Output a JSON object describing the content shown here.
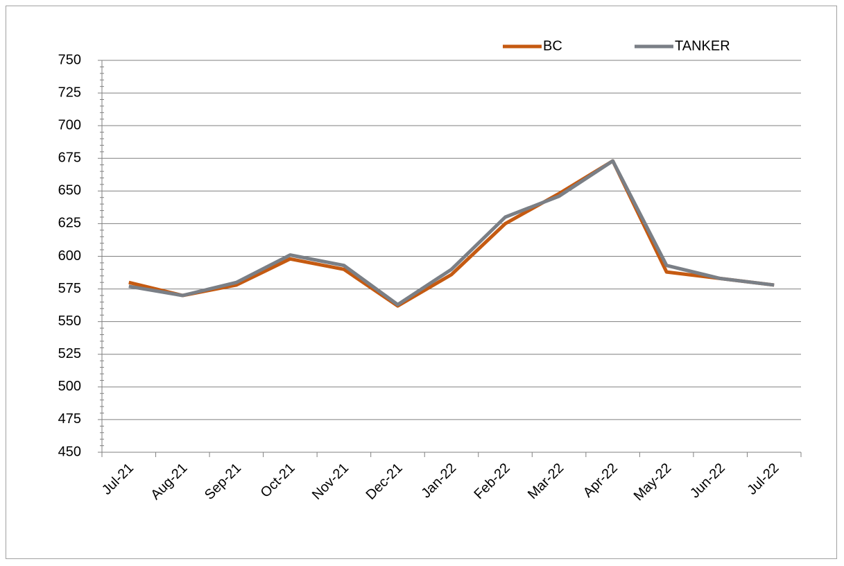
{
  "chart_data": {
    "type": "line",
    "categories": [
      "Jul-21",
      "Aug-21",
      "Sep-21",
      "Oct-21",
      "Nov-21",
      "Dec-21",
      "Jan-22",
      "Feb-22",
      "Mar-22",
      "Apr-22",
      "May-22",
      "Jun-22",
      "Jul-22"
    ],
    "series": [
      {
        "name": "BC",
        "color": "#c55a11",
        "values": [
          580,
          570,
          578,
          598,
          590,
          562,
          586,
          625,
          648,
          673,
          588,
          583,
          578
        ]
      },
      {
        "name": "TANKER",
        "color": "#7a7f86",
        "values": [
          577,
          570,
          580,
          601,
          593,
          563,
          590,
          630,
          646,
          673,
          593,
          583,
          578
        ]
      }
    ],
    "ylim": [
      450,
      750
    ],
    "yticks": [
      450,
      475,
      500,
      525,
      550,
      575,
      600,
      625,
      650,
      675,
      700,
      725,
      750
    ],
    "grid": true,
    "legend": "top"
  }
}
